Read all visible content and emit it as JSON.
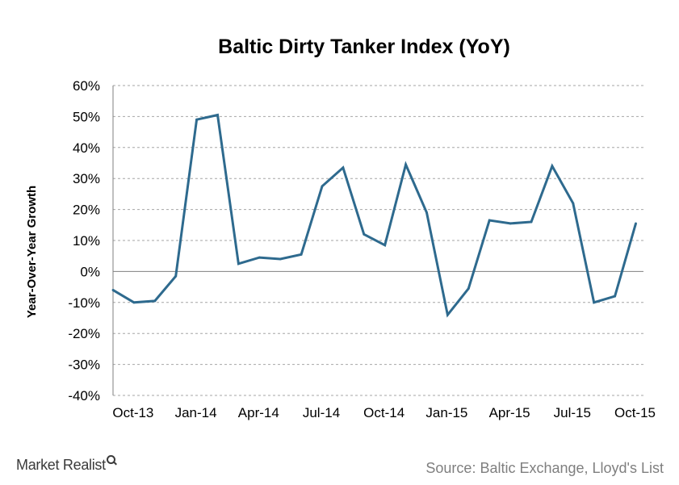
{
  "chart_data": {
    "type": "line",
    "title": "Baltic Dirty Tanker Index (YoY)",
    "xlabel": "",
    "ylabel": "Year-Over-Year Growth",
    "y_unit": "%",
    "ylim": [
      -40,
      60
    ],
    "y_ticks": [
      60,
      50,
      40,
      30,
      20,
      10,
      0,
      -10,
      -20,
      -30,
      -40
    ],
    "y_tick_labels": [
      "60%",
      "50%",
      "40%",
      "30%",
      "20%",
      "10%",
      "0%",
      "-10%",
      "-20%",
      "-30%",
      "-40%"
    ],
    "x_tick_labels": [
      "Oct-13",
      "Jan-14",
      "Apr-14",
      "Jul-14",
      "Oct-14",
      "Jan-15",
      "Apr-15",
      "Jul-15",
      "Oct-15"
    ],
    "x_tick_positions": [
      0,
      3,
      6,
      9,
      12,
      15,
      18,
      21,
      24
    ],
    "grid": true,
    "legend": "none",
    "series": [
      {
        "color": "#2e6a8e",
        "x": [
          "Sep-13",
          "Oct-13",
          "Nov-13",
          "Dec-13",
          "Jan-14",
          "Feb-14",
          "Mar-14",
          "Apr-14",
          "May-14",
          "Jun-14",
          "Jul-14",
          "Aug-14",
          "Sep-14",
          "Oct-14",
          "Nov-14",
          "Dec-14",
          "Jan-15",
          "Feb-15",
          "Mar-15",
          "Apr-15",
          "May-15",
          "Jun-15",
          "Jul-15",
          "Aug-15",
          "Sep-15",
          "Oct-15"
        ],
        "values": [
          -6,
          -10,
          -9.5,
          -1.5,
          49,
          50.5,
          2.5,
          4.5,
          4,
          5.5,
          27.5,
          33.5,
          12,
          8.5,
          34.5,
          19,
          -14,
          -5.5,
          16.5,
          15.5,
          16,
          34,
          22,
          -10,
          -8,
          15.5
        ]
      }
    ]
  },
  "branding": {
    "logo_text": "Market Realist"
  },
  "source_text": "Source: Baltic Exchange, Lloyd's List"
}
